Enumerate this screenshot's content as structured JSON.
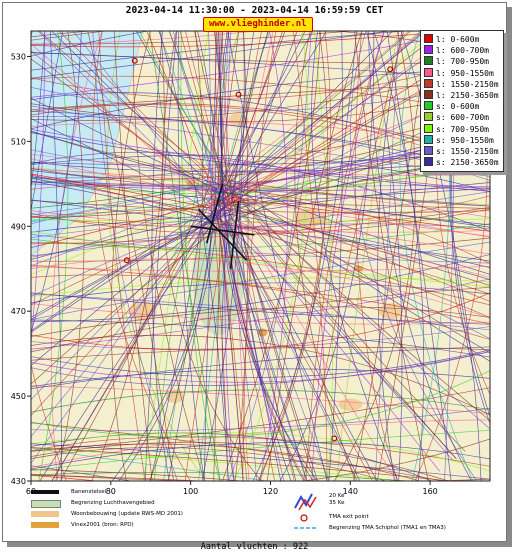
{
  "header": {
    "title": "2023-04-14 11:30:00 - 2023-04-14 16:59:59 CET",
    "logo_text": "www.vlieghinder.nl"
  },
  "chart_data": {
    "type": "map",
    "title": "2023-04-14 11:30:00 - 2023-04-14 16:59:59 CET",
    "xlim": [
      60,
      175
    ],
    "ylim": [
      430,
      536
    ],
    "x_ticks": [
      60,
      80,
      100,
      120,
      140,
      160
    ],
    "y_ticks": [
      430,
      450,
      470,
      490,
      510,
      530
    ],
    "legend_placement": "top-right",
    "series": [
      {
        "name": "l: 0-600m",
        "color": "#e00000"
      },
      {
        "name": "l: 600-700m",
        "color": "#a020f0"
      },
      {
        "name": "l: 700-950m",
        "color": "#208020"
      },
      {
        "name": "l: 950-1550m",
        "color": "#ff5a8c"
      },
      {
        "name": "l: 1550-2150m",
        "color": "#c0392b"
      },
      {
        "name": "l: 2150-3650m",
        "color": "#8b2e1e"
      },
      {
        "name": "s: 0-600m",
        "color": "#22cc22"
      },
      {
        "name": "s: 600-700m",
        "color": "#9acd32"
      },
      {
        "name": "s: 700-950m",
        "color": "#7cfc00"
      },
      {
        "name": "s: 950-1550m",
        "color": "#20b2aa"
      },
      {
        "name": "s: 1550-2150m",
        "color": "#6a5acd"
      },
      {
        "name": "s: 2150-3650m",
        "color": "#3a2d99"
      }
    ],
    "flight_count": 922
  },
  "map_legend": {
    "runway": "Banenstelsel",
    "airport_boundary": "Begrenzing Luchthavengebied",
    "housing": "Woonbebouwing (update RWS-MD 2001)",
    "vinex": "Vinex2001 (bron: RPD)",
    "wind_a": "20 Ke",
    "wind_b": "35 Ke",
    "tma_exit": "TMA exit point",
    "tma_boundary": "Begrenzing TMA Schiphol  (TMA1 en TMA3)"
  },
  "footer": {
    "count_text": "Aantal vluchten : 922"
  },
  "colors": {
    "water": "#c6ebf5",
    "land": "#f4f0cf",
    "boundary": "#c9ddb9",
    "housing": "#f1c58c",
    "vinex": "#e0a339",
    "runway": "#111111"
  }
}
